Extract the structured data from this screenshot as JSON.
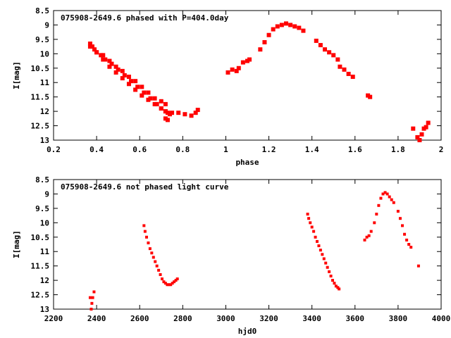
{
  "colors": {
    "points": "#ff0000",
    "frame": "#000000",
    "background": "#ffffff"
  },
  "chart_data": [
    {
      "type": "scatter",
      "title": "075908-2649.6 phased with P=404.0day",
      "xlabel": "phase",
      "ylabel": "I[mag]",
      "xlim": [
        0.2,
        2.0
      ],
      "ylim": [
        8.5,
        13.0
      ],
      "y_inverted": true,
      "grid": false,
      "xticks": [
        0.2,
        0.4,
        0.6,
        0.8,
        1,
        1.2,
        1.4,
        1.6,
        1.8,
        2
      ],
      "yticks": [
        8.5,
        9,
        9.5,
        10,
        10.5,
        11,
        11.5,
        12,
        12.5,
        13
      ],
      "x": [
        0.37,
        0.38,
        0.39,
        0.4,
        0.42,
        0.44,
        0.47,
        0.5,
        0.53,
        0.56,
        0.59,
        0.62,
        0.65,
        0.68,
        0.7,
        0.72,
        0.73,
        0.75,
        0.78,
        0.81,
        0.84,
        0.86,
        0.87,
        0.37,
        0.4,
        0.43,
        0.46,
        0.49,
        0.52,
        0.55,
        0.58,
        0.61,
        0.64,
        0.67,
        0.7,
        0.72,
        0.74,
        0.72,
        0.73,
        0.43,
        0.46,
        0.49,
        0.52,
        0.55,
        0.58,
        0.61,
        0.64,
        0.67,
        0.7,
        0.72,
        1.01,
        1.03,
        1.05,
        1.06,
        1.08,
        1.1,
        1.11,
        1.16,
        1.18,
        1.2,
        1.22,
        1.24,
        1.26,
        1.28,
        1.3,
        1.32,
        1.34,
        1.36,
        1.42,
        1.44,
        1.46,
        1.48,
        1.5,
        1.52,
        1.53,
        1.55,
        1.57,
        1.59,
        1.66,
        1.67,
        1.87,
        1.89,
        1.9,
        1.91,
        1.92,
        1.93,
        1.94
      ],
      "y": [
        9.65,
        9.75,
        9.85,
        9.95,
        10.05,
        10.2,
        10.35,
        10.55,
        10.75,
        10.95,
        11.15,
        11.35,
        11.55,
        11.75,
        11.9,
        12.0,
        12.05,
        12.05,
        12.05,
        12.1,
        12.15,
        12.05,
        11.95,
        9.75,
        9.95,
        10.2,
        10.45,
        10.65,
        10.85,
        11.05,
        11.25,
        11.45,
        11.6,
        11.75,
        11.9,
        12.0,
        12.1,
        12.25,
        12.3,
        10.05,
        10.25,
        10.45,
        10.6,
        10.8,
        10.95,
        11.15,
        11.35,
        11.55,
        11.65,
        11.75,
        10.65,
        10.55,
        10.6,
        10.5,
        10.3,
        10.25,
        10.2,
        9.85,
        9.6,
        9.35,
        9.15,
        9.05,
        9.0,
        8.95,
        9.0,
        9.05,
        9.1,
        9.2,
        9.55,
        9.7,
        9.85,
        9.95,
        10.05,
        10.2,
        10.45,
        10.55,
        10.7,
        10.8,
        11.45,
        11.5,
        12.6,
        12.9,
        13.0,
        12.8,
        12.6,
        12.55,
        12.4
      ]
    },
    {
      "type": "scatter",
      "title": "075908-2649.6 not phased light curve",
      "xlabel": "hjd0",
      "ylabel": "I[mag]",
      "xlim": [
        2200,
        4000
      ],
      "ylim": [
        8.5,
        13.0
      ],
      "y_inverted": true,
      "grid": false,
      "xticks": [
        2200,
        2400,
        2600,
        2800,
        3000,
        3200,
        3400,
        3600,
        3800,
        4000
      ],
      "yticks": [
        8.5,
        9,
        9.5,
        10,
        10.5,
        11,
        11.5,
        12,
        12.5,
        13
      ],
      "x": [
        2370,
        2375,
        2378,
        2382,
        2388,
        2620,
        2625,
        2632,
        2640,
        2648,
        2656,
        2664,
        2672,
        2680,
        2688,
        2696,
        2704,
        2712,
        2720,
        2728,
        2736,
        2744,
        2752,
        2760,
        2768,
        2775,
        3380,
        3385,
        3392,
        3400,
        3408,
        3416,
        3424,
        3432,
        3440,
        3448,
        3456,
        3464,
        3472,
        3480,
        3488,
        3496,
        3504,
        3512,
        3520,
        3526,
        3645,
        3655,
        3665,
        3675,
        3690,
        3700,
        3710,
        3720,
        3730,
        3740,
        3750,
        3760,
        3770,
        3780,
        3800,
        3810,
        3820,
        3830,
        3840,
        3850,
        3860,
        3895
      ],
      "y": [
        12.6,
        13.0,
        12.8,
        12.6,
        12.4,
        10.1,
        10.3,
        10.5,
        10.7,
        10.9,
        11.05,
        11.2,
        11.35,
        11.5,
        11.65,
        11.8,
        11.95,
        12.05,
        12.1,
        12.15,
        12.15,
        12.15,
        12.1,
        12.05,
        12.0,
        11.95,
        9.7,
        9.85,
        10.0,
        10.15,
        10.3,
        10.5,
        10.65,
        10.8,
        10.95,
        11.1,
        11.25,
        11.4,
        11.55,
        11.7,
        11.85,
        12.0,
        12.1,
        12.2,
        12.25,
        12.3,
        10.6,
        10.5,
        10.45,
        10.3,
        10.0,
        9.7,
        9.4,
        9.15,
        9.0,
        8.95,
        9.0,
        9.1,
        9.2,
        9.3,
        9.6,
        9.85,
        10.1,
        10.4,
        10.6,
        10.75,
        10.85,
        11.5
      ]
    }
  ]
}
